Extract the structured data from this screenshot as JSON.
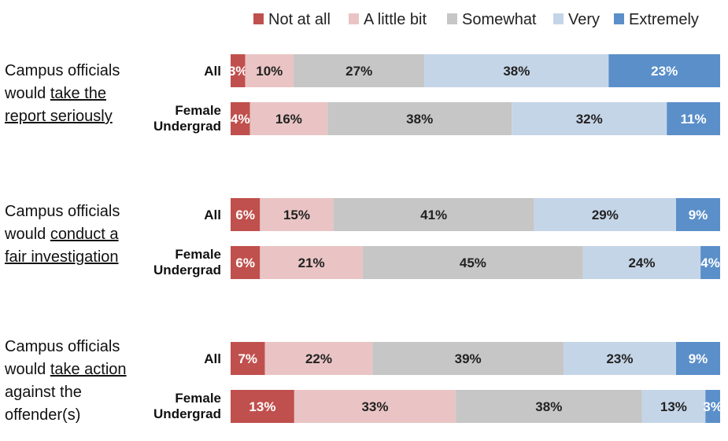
{
  "chart_data": {
    "type": "bar",
    "orientation": "horizontal",
    "stacked": "percent",
    "legend_position": "top",
    "grid": false,
    "legend": [
      {
        "name": "Not at all",
        "color": "#c0504d"
      },
      {
        "name": "A little bit",
        "color": "#eac4c4"
      },
      {
        "name": "Somewhat",
        "color": "#c6c6c6"
      },
      {
        "name": "Very",
        "color": "#c5d5e8"
      },
      {
        "name": "Extremely",
        "color": "#5b8fc9"
      }
    ],
    "groups": [
      {
        "lines": [
          {
            "plain": "Campus officials",
            "underline": ""
          },
          {
            "plain": "would ",
            "underline": "take the"
          },
          {
            "plain": "",
            "underline": "report seriously"
          }
        ],
        "rows": [
          {
            "label_lines": [
              "All"
            ],
            "values": [
              3,
              10,
              27,
              38,
              23
            ],
            "labels": [
              "3%",
              "10%",
              "27%",
              "38%",
              "23%"
            ]
          },
          {
            "label_lines": [
              "Female",
              "Undergrad"
            ],
            "values": [
              4,
              16,
              38,
              32,
              11
            ],
            "labels": [
              "4%",
              "16%",
              "38%",
              "32%",
              "11%"
            ]
          }
        ]
      },
      {
        "lines": [
          {
            "plain": "Campus officials",
            "underline": ""
          },
          {
            "plain": "would ",
            "underline": "conduct a"
          },
          {
            "plain": "",
            "underline": "fair investigation"
          }
        ],
        "rows": [
          {
            "label_lines": [
              "All"
            ],
            "values": [
              6,
              15,
              41,
              29,
              9
            ],
            "labels": [
              "6%",
              "15%",
              "41%",
              "29%",
              "9%"
            ]
          },
          {
            "label_lines": [
              "Female",
              "Undergrad"
            ],
            "values": [
              6,
              21,
              45,
              24,
              4
            ],
            "labels": [
              "6%",
              "21%",
              "45%",
              "24%",
              "4%"
            ]
          }
        ]
      },
      {
        "lines": [
          {
            "plain": "Campus officials",
            "underline": ""
          },
          {
            "plain": "would ",
            "underline": "take action"
          },
          {
            "plain": "against the",
            "underline": ""
          },
          {
            "plain": "offender(s)",
            "underline": ""
          }
        ],
        "rows": [
          {
            "label_lines": [
              "All"
            ],
            "values": [
              7,
              22,
              39,
              23,
              9
            ],
            "labels": [
              "7%",
              "22%",
              "39%",
              "23%",
              "9%"
            ]
          },
          {
            "label_lines": [
              "Female",
              "Undergrad"
            ],
            "values": [
              13,
              33,
              38,
              13,
              3
            ],
            "labels": [
              "13%",
              "33%",
              "38%",
              "13%",
              "3%"
            ]
          }
        ]
      }
    ]
  }
}
